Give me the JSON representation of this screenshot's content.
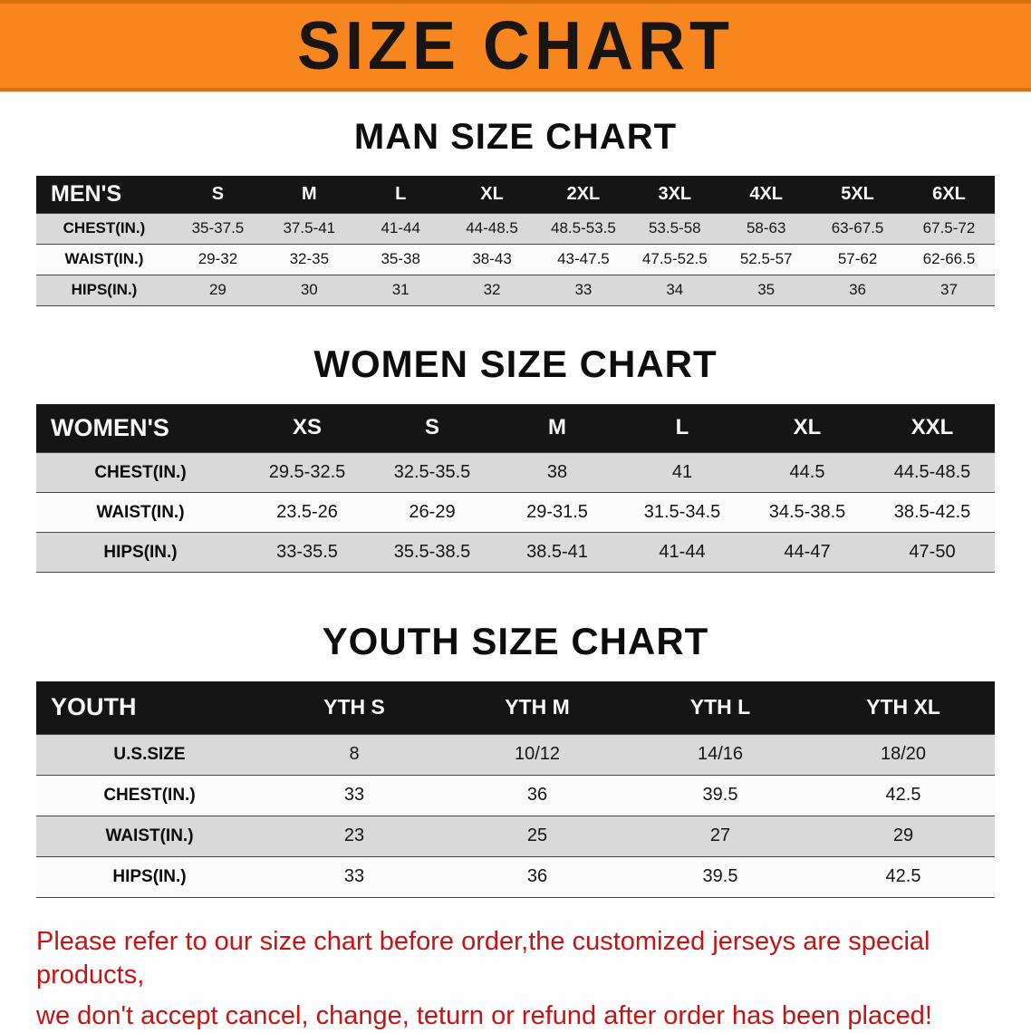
{
  "banner": {
    "title": "SIZE CHART"
  },
  "sections": [
    {
      "heading": "MAN SIZE CHART",
      "corner_label": "MEN'S",
      "columns": [
        "S",
        "M",
        "L",
        "XL",
        "2XL",
        "3XL",
        "4XL",
        "5XL",
        "6XL"
      ],
      "rows": [
        {
          "label": "CHEST(IN.)",
          "values": [
            "35-37.5",
            "37.5-41",
            "41-44",
            "44-48.5",
            "48.5-53.5",
            "53.5-58",
            "58-63",
            "63-67.5",
            "67.5-72"
          ]
        },
        {
          "label": "WAIST(IN.)",
          "values": [
            "29-32",
            "32-35",
            "35-38",
            "38-43",
            "43-47.5",
            "47.5-52.5",
            "52.5-57",
            "57-62",
            "62-66.5"
          ]
        },
        {
          "label": "HIPS(IN.)",
          "values": [
            "29",
            "30",
            "31",
            "32",
            "33",
            "34",
            "35",
            "36",
            "37"
          ]
        }
      ]
    },
    {
      "heading": "WOMEN SIZE CHART",
      "corner_label": "WOMEN'S",
      "columns": [
        "XS",
        "S",
        "M",
        "L",
        "XL",
        "XXL"
      ],
      "rows": [
        {
          "label": "CHEST(IN.)",
          "values": [
            "29.5-32.5",
            "32.5-35.5",
            "38",
            "41",
            "44.5",
            "44.5-48.5"
          ]
        },
        {
          "label": "WAIST(IN.)",
          "values": [
            "23.5-26",
            "26-29",
            "29-31.5",
            "31.5-34.5",
            "34.5-38.5",
            "38.5-42.5"
          ]
        },
        {
          "label": "HIPS(IN.)",
          "values": [
            "33-35.5",
            "35.5-38.5",
            "38.5-41",
            "41-44",
            "44-47",
            "47-50"
          ]
        }
      ]
    },
    {
      "heading": "YOUTH SIZE CHART",
      "corner_label": "YOUTH",
      "columns": [
        "YTH S",
        "YTH M",
        "YTH L",
        "YTH XL"
      ],
      "rows": [
        {
          "label": "U.S.SIZE",
          "values": [
            "8",
            "10/12",
            "14/16",
            "18/20"
          ]
        },
        {
          "label": "CHEST(IN.)",
          "values": [
            "33",
            "36",
            "39.5",
            "42.5"
          ]
        },
        {
          "label": "WAIST(IN.)",
          "values": [
            "23",
            "25",
            "27",
            "29"
          ]
        },
        {
          "label": "HIPS(IN.)",
          "values": [
            "33",
            "36",
            "39.5",
            "42.5"
          ]
        }
      ]
    }
  ],
  "footer": {
    "lines": [
      "Please refer to our size chart before order,the customized jerseys are special products,",
      "we don't accept cancel, change, teturn or refund after order has been placed!"
    ]
  },
  "colors": {
    "banner_bg": "#f6861d",
    "banner_edge": "#d96f12",
    "header_bg": "#151515",
    "row_alt": "#d9d9d9",
    "row_plain": "#fbfbfb",
    "note_color": "#c51414"
  }
}
